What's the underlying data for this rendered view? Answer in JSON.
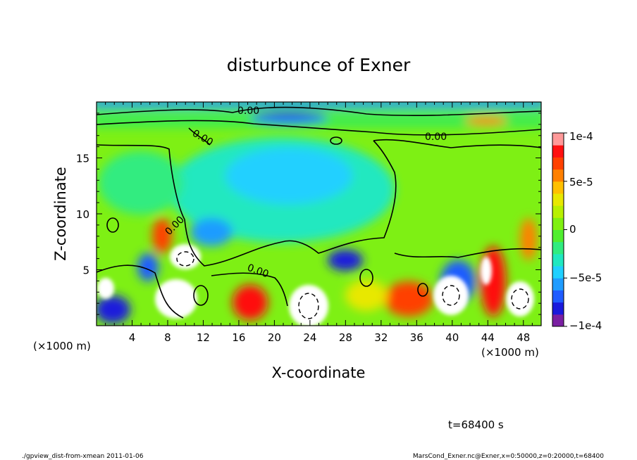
{
  "chart_data": {
    "type": "heatmap",
    "title": "disturbunce of Exner",
    "xlabel": "X-coordinate",
    "ylabel": "Z-coordinate",
    "x_unit": "(×1000 m)",
    "y_unit": "(×1000 m)",
    "xlim": [
      0,
      50
    ],
    "ylim": [
      0,
      20
    ],
    "x_ticks": [
      "4",
      "8",
      "12",
      "16",
      "20",
      "24",
      "28",
      "32",
      "36",
      "40",
      "44",
      "48"
    ],
    "y_ticks": [
      "5",
      "10",
      "15"
    ],
    "colorbar": {
      "range": [
        -0.0001,
        0.0001
      ],
      "tick_labels": [
        "1e-4",
        "5e-5",
        "0",
        "−5e-5",
        "−1e-4"
      ],
      "colors": [
        "#7a1fa2",
        "#1a1adc",
        "#1f5cff",
        "#1f9cff",
        "#20d0ff",
        "#20e8c0",
        "#30ec80",
        "#50ee30",
        "#80f010",
        "#b8f000",
        "#e8e800",
        "#ffc000",
        "#ff8000",
        "#ff4000",
        "#ff1010",
        "#ff9999"
      ]
    },
    "contour_labels": [
      "0.00",
      "0.00",
      "0.00",
      "0.00",
      "0.00"
    ],
    "time_label": "t=68400 s",
    "footer_left": "./gpview_dist-from-xmean  2011-01-06",
    "footer_right": "MarsCond_Exner.nc@Exner,x=0:50000,z=0:20000,t=68400"
  }
}
